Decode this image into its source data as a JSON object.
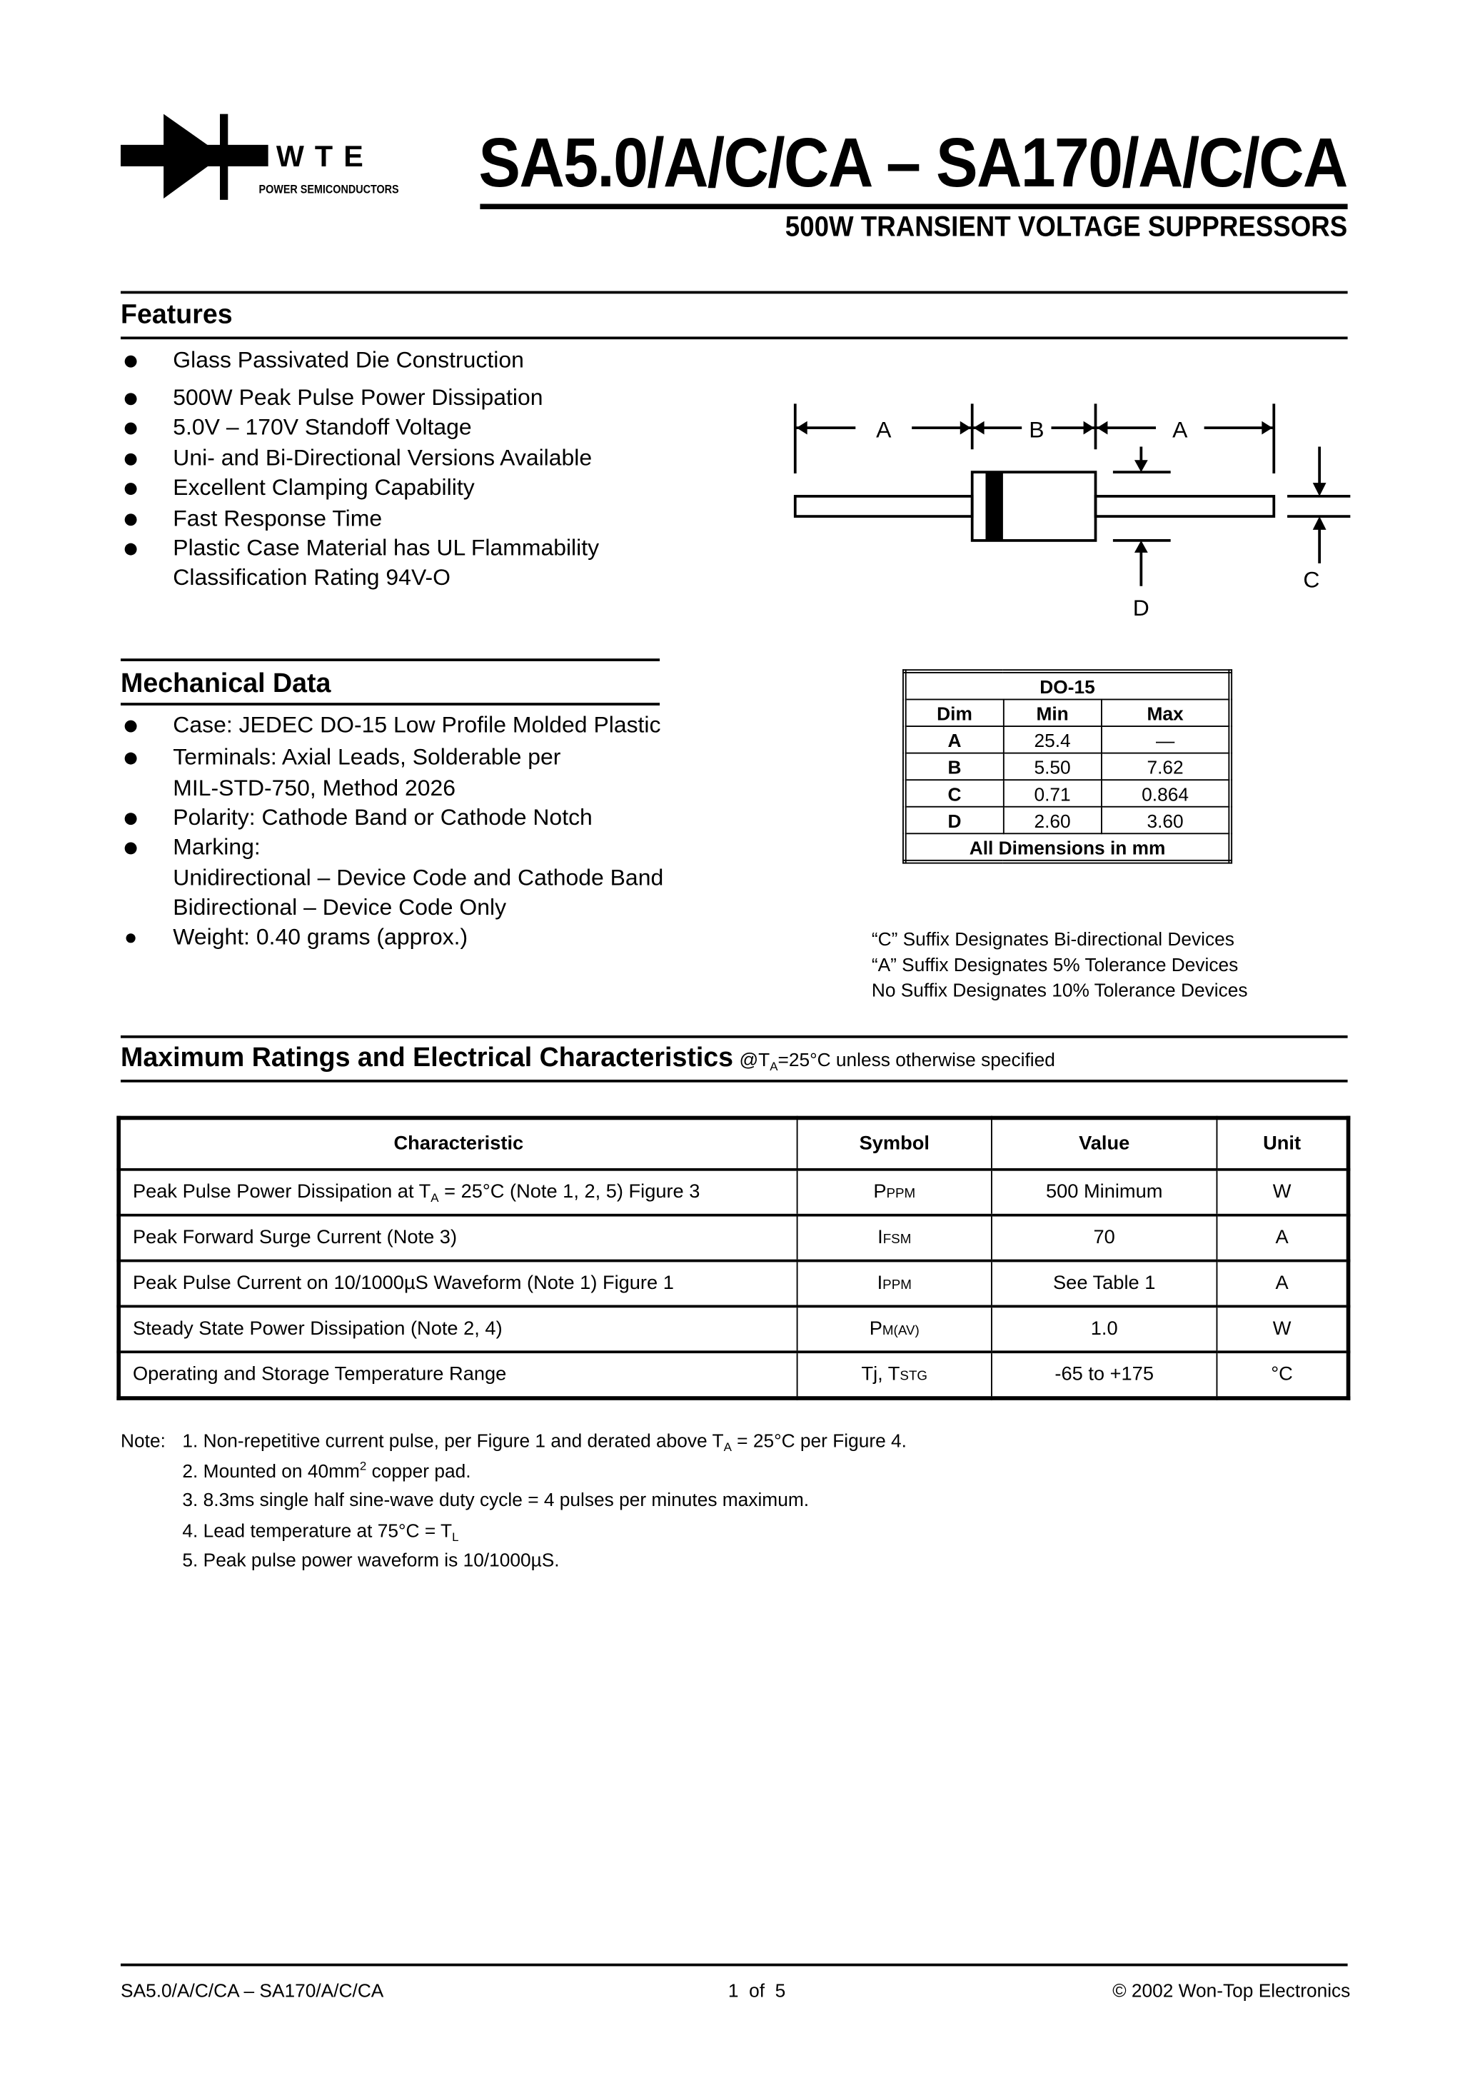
{
  "header": {
    "logo_text": "WTE",
    "logo_subtext": "POWER SEMICONDUCTORS",
    "title": "SA5.0/A/C/CA – SA170/A/C/CA",
    "subtitle": "500W TRANSIENT VOLTAGE SUPPRESSORS"
  },
  "features": {
    "heading": "Features",
    "items": [
      "Glass Passivated Die Construction",
      "500W Peak Pulse Power Dissipation",
      "5.0V – 170V Standoff Voltage",
      "Uni- and Bi-Directional Versions Available",
      "Excellent Clamping Capability",
      "Fast Response Time",
      "Plastic Case Material has UL Flammability",
      "Classification Rating 94V-O"
    ]
  },
  "diagram": {
    "labels": {
      "a1": "A",
      "b": "B",
      "a2": "A",
      "c": "C",
      "d": "D"
    }
  },
  "mechanical": {
    "heading": "Mechanical Data",
    "items": [
      "Case: JEDEC DO-15 Low Profile Molded Plastic",
      "Terminals: Axial Leads, Solderable per",
      "MIL-STD-750, Method 2026",
      "Polarity: Cathode Band or Cathode Notch",
      "Marking:",
      "Unidirectional – Device Code and Cathode Band",
      "Bidirectional – Device Code Only",
      "Weight: 0.40 grams (approx.)"
    ]
  },
  "do15": {
    "title": "DO-15",
    "headers": [
      "Dim",
      "Min",
      "Max"
    ],
    "rows": [
      [
        "A",
        "25.4",
        "—"
      ],
      [
        "B",
        "5.50",
        "7.62"
      ],
      [
        "C",
        "0.71",
        "0.864"
      ],
      [
        "D",
        "2.60",
        "3.60"
      ]
    ],
    "footer": "All Dimensions in mm"
  },
  "suffix_notes": [
    "“C” Suffix Designates Bi-directional Devices",
    "“A” Suffix Designates 5% Tolerance Devices",
    "No Suffix Designates 10% Tolerance Devices"
  ],
  "ratings": {
    "heading": "Maximum Ratings and Electrical Characteristics",
    "condition_prefix": "@T",
    "condition_sub": "A",
    "condition_rest": "=25°C unless otherwise specified",
    "headers": [
      "Characteristic",
      "Symbol",
      "Value",
      "Unit"
    ],
    "rows": [
      {
        "char_a": "Peak Pulse Power Dissipation at T",
        "char_sub": "A",
        "char_b": " = 25°C (Note 1, 2, 5) Figure 3",
        "sym": "P",
        "sym_sub": "PPM",
        "value": "500 Minimum",
        "unit": "W"
      },
      {
        "char_a": "Peak Forward Surge Current (Note 3)",
        "char_sub": "",
        "char_b": "",
        "sym": "I",
        "sym_sub": "FSM",
        "value": "70",
        "unit": "A"
      },
      {
        "char_a": "Peak Pulse Current on 10/1000µS Waveform (Note 1) Figure 1",
        "char_sub": "",
        "char_b": "",
        "sym": "I",
        "sym_sub": "PPM",
        "value": "See Table 1",
        "unit": "A"
      },
      {
        "char_a": "Steady State Power Dissipation (Note 2, 4)",
        "char_sub": "",
        "char_b": "",
        "sym": "P",
        "sym_sub": "M(AV)",
        "value": "1.0",
        "unit": "W"
      },
      {
        "char_a": "Operating and Storage Temperature Range",
        "char_sub": "",
        "char_b": "",
        "sym": "Tj, T",
        "sym_sub": "STG",
        "value": "-65 to +175",
        "unit": "°C"
      }
    ]
  },
  "notes": {
    "label": "Note:",
    "items": [
      "1. Non-repetitive current pulse, per Figure 1 and derated above T",
      "2. Mounted on 40mm",
      "3. 8.3ms single half sine-wave duty cycle = 4 pulses per minutes maximum.",
      "4. Lead temperature at 75°C = T",
      "5. Peak pulse power waveform is 10/1000µS."
    ],
    "n1_sub": "A",
    "n1_rest": " = 25°C per Figure 4.",
    "n2_sup": "2",
    "n2_rest": " copper pad.",
    "n4_sub": "L"
  },
  "footer": {
    "left": "SA5.0/A/C/CA – SA170/A/C/CA",
    "center": "1  of  5",
    "right": "© 2002 Won-Top Electronics"
  }
}
